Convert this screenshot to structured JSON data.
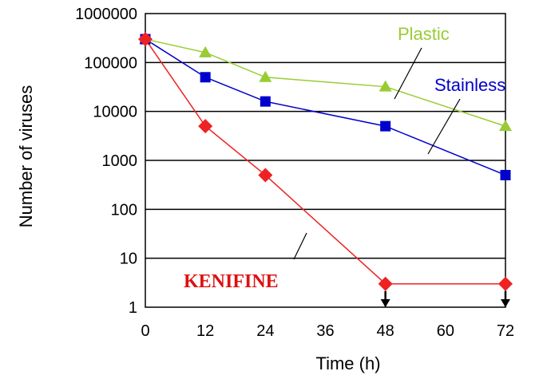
{
  "chart_data": {
    "type": "line",
    "xlabel": "Time (h)",
    "ylabel": "Number of viruses",
    "x_ticks": [
      "0",
      "12",
      "24",
      "36",
      "48",
      "60",
      "72"
    ],
    "y_ticks": [
      "1",
      "10",
      "100",
      "1000",
      "10000",
      "100000",
      "1000000"
    ],
    "xlim": [
      0,
      72
    ],
    "ylim": [
      1,
      1000000
    ],
    "y_scale": "log",
    "grid": "horizontal",
    "series": [
      {
        "name": "Plastic",
        "color": "#99cc33",
        "marker": "triangle",
        "x": [
          0,
          12,
          24,
          48,
          72
        ],
        "y": [
          300000,
          160000,
          50000,
          32000,
          5000
        ]
      },
      {
        "name": "Stainless",
        "color": "#0000cc",
        "marker": "square",
        "x": [
          0,
          12,
          24,
          48,
          72
        ],
        "y": [
          300000,
          50000,
          16000,
          5000,
          500
        ]
      },
      {
        "name": "KENIFINE",
        "color": "#ee2222",
        "marker": "diamond",
        "x": [
          0,
          12,
          24,
          48,
          72
        ],
        "y": [
          300000,
          5000,
          500,
          3,
          3
        ],
        "below_detection_at": [
          48,
          72
        ]
      }
    ]
  }
}
